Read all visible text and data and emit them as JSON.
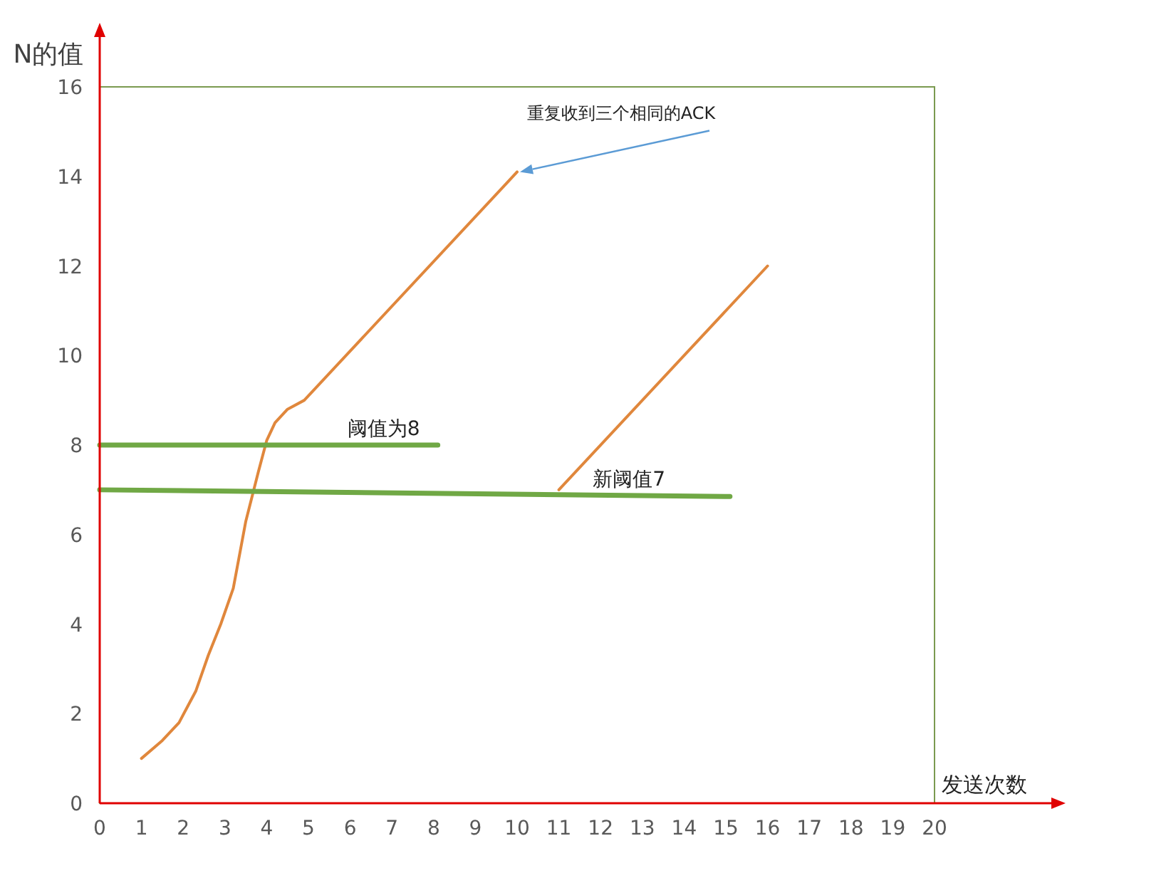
{
  "chart_data": {
    "type": "line",
    "xlabel": "发送次数",
    "ylabel": "N的值",
    "xlim": [
      0,
      20
    ],
    "xticks": [
      0,
      1,
      2,
      3,
      4,
      5,
      6,
      7,
      8,
      9,
      10,
      11,
      12,
      13,
      14,
      15,
      16,
      17,
      18,
      19,
      20
    ],
    "ylim": [
      0,
      16
    ],
    "yticks": [
      0,
      2,
      4,
      6,
      8,
      10,
      12,
      14,
      16
    ],
    "grid": false,
    "series": [
      {
        "color": "#e0873c",
        "x": [
          1,
          1.5,
          1.9,
          2.3,
          2.6,
          2.9,
          3.2,
          3.5,
          3.8,
          4.0,
          4.2,
          4.5,
          4.9,
          10
        ],
        "values": [
          1,
          1.4,
          1.8,
          2.5,
          3.3,
          4.0,
          4.8,
          6.3,
          7.4,
          8.1,
          8.5,
          8.8,
          9.0,
          14.1
        ]
      },
      {
        "color": "#e0873c",
        "x": [
          11,
          16
        ],
        "values": [
          7,
          12
        ]
      },
      {
        "name": "阈值为8",
        "color": "#70a845",
        "x": [
          0,
          8.1
        ],
        "values": [
          8,
          8
        ]
      },
      {
        "name": "新阈值7",
        "color": "#70a845",
        "x": [
          0,
          15.1
        ],
        "values": [
          7.0,
          6.85
        ]
      }
    ],
    "annotations": [
      {
        "text": "重复收到三个相同的ACK",
        "x": 10,
        "y": 14.1
      }
    ]
  }
}
